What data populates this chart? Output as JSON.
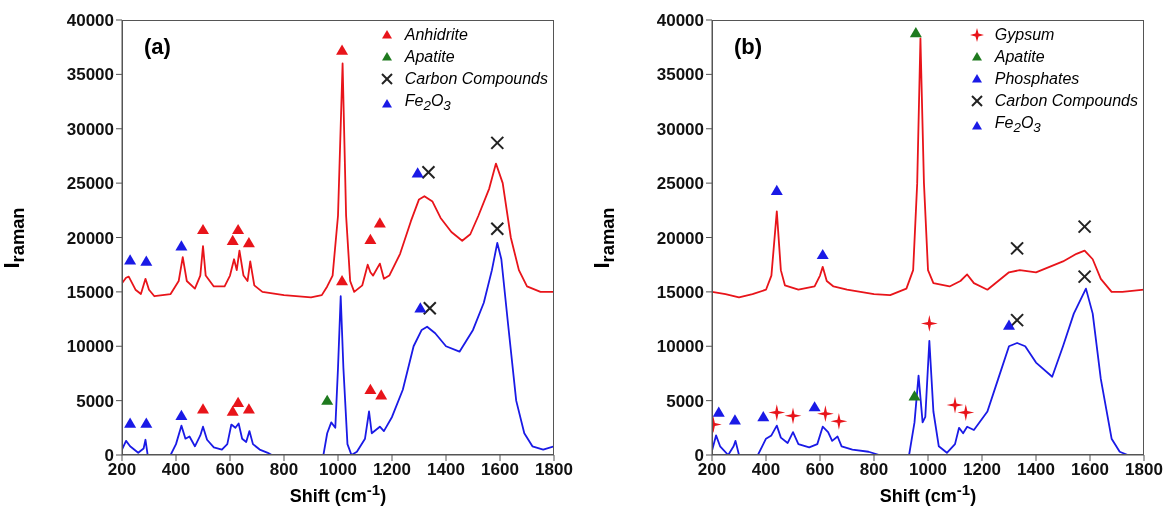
{
  "chart_data": [
    {
      "type": "line",
      "xlabel": "Shift (cm$^{-1}$)",
      "ylabel": "I$_{raman}$",
      "annotations": [
        "(a)"
      ],
      "xlim": [
        200,
        1800
      ],
      "xticks": [
        200,
        400,
        600,
        800,
        1000,
        1200,
        1400,
        1600,
        1800
      ],
      "ylim": [
        0,
        40000
      ],
      "yticks": [
        0,
        5000,
        10000,
        15000,
        20000,
        25000,
        30000,
        35000,
        40000
      ],
      "legend": "top right",
      "series": [
        {
          "color": "#e8141a",
          "x": [
            200,
            215,
            225,
            250,
            270,
            287,
            300,
            320,
            380,
            410,
            425,
            440,
            470,
            490,
            500,
            510,
            540,
            580,
            600,
            615,
            625,
            635,
            650,
            665,
            675,
            690,
            720,
            800,
            900,
            940,
            960,
            980,
            1000,
            1017,
            1030,
            1045,
            1060,
            1090,
            1110,
            1120,
            1130,
            1155,
            1170,
            1190,
            1230,
            1270,
            1300,
            1320,
            1350,
            1380,
            1420,
            1460,
            1490,
            1520,
            1560,
            1585,
            1610,
            1640,
            1670,
            1700,
            1750,
            1800
          ],
          "values": [
            15800,
            16300,
            16400,
            15200,
            14800,
            16200,
            15200,
            14600,
            14800,
            16000,
            18200,
            16000,
            15300,
            16500,
            19200,
            16500,
            15500,
            15500,
            16500,
            18000,
            17000,
            18800,
            16500,
            16000,
            17800,
            15600,
            15000,
            14700,
            14500,
            14700,
            15500,
            16500,
            22000,
            36000,
            22000,
            16000,
            15000,
            15600,
            17500,
            16800,
            16500,
            17600,
            16200,
            16500,
            18500,
            21500,
            23500,
            23800,
            23300,
            21800,
            20500,
            19700,
            20300,
            22000,
            24500,
            26800,
            25000,
            20000,
            17000,
            15500,
            15000,
            15000
          ]
        },
        {
          "color": "#1a1ae6",
          "x": [
            200,
            215,
            230,
            260,
            280,
            287,
            295,
            330,
            380,
            400,
            420,
            435,
            450,
            470,
            490,
            500,
            515,
            540,
            570,
            590,
            605,
            620,
            632,
            645,
            660,
            672,
            685,
            710,
            740,
            755,
            800,
            946,
            960,
            975,
            990,
            1000,
            1010,
            1020,
            1035,
            1050,
            1070,
            1100,
            1115,
            1125,
            1140,
            1155,
            1170,
            1200,
            1240,
            1280,
            1310,
            1330,
            1360,
            1400,
            1450,
            1500,
            1540,
            1570,
            1590,
            1605,
            1630,
            1660,
            1690,
            1720,
            1760,
            1800
          ],
          "values": [
            500,
            1300,
            800,
            200,
            600,
            1400,
            0,
            null,
            0,
            1000,
            2700,
            1500,
            1700,
            800,
            1800,
            2600,
            1400,
            700,
            500,
            1000,
            2800,
            2500,
            2900,
            1500,
            1200,
            2200,
            1000,
            500,
            200,
            0,
            null,
            0,
            2000,
            3000,
            2500,
            8000,
            14600,
            8000,
            1000,
            0,
            300,
            1500,
            4000,
            2000,
            2300,
            2600,
            2200,
            3500,
            6000,
            10000,
            11500,
            11800,
            11200,
            10000,
            9500,
            11500,
            14000,
            17000,
            19500,
            18000,
            12000,
            5000,
            2000,
            800,
            500,
            800
          ]
        },
        {
          "type": "scatter",
          "name": "Anhidrite",
          "color": "#e8141a",
          "marker": "triangle",
          "x": [
            500,
            610,
            630,
            670,
            1015,
            1120,
            1155,
            500,
            610,
            630,
            670,
            1015,
            1120,
            1160
          ],
          "values": [
            20700,
            19700,
            20700,
            19500,
            37200,
            19800,
            21300,
            4200,
            4000,
            4800,
            4200,
            16000,
            6000,
            5500
          ]
        },
        {
          "type": "scatter",
          "name": "Apatite",
          "color": "#1e7a1e",
          "marker": "triangle",
          "x": [
            960
          ],
          "values": [
            5000
          ]
        },
        {
          "type": "scatter",
          "name": "Carbon Compounds",
          "color": "#222222",
          "marker": "cross",
          "x": [
            1335,
            1590,
            1340,
            1590
          ],
          "values": [
            26000,
            28700,
            13500,
            20800
          ]
        },
        {
          "type": "scatter",
          "name": "Fe$_{2}$O$_{3}$",
          "color": "#1a1ae6",
          "marker": "triangle",
          "x": [
            230,
            290,
            420,
            1295,
            230,
            290,
            420,
            1305
          ],
          "values": [
            17900,
            17800,
            19200,
            25900,
            2900,
            2900,
            3600,
            13500
          ]
        }
      ]
    },
    {
      "type": "line",
      "xlabel": "Shift (cm$^{-1}$)",
      "ylabel": "I$_{raman}$",
      "annotations": [
        "(b)"
      ],
      "xlim": [
        200,
        1800
      ],
      "xticks": [
        200,
        400,
        600,
        800,
        1000,
        1200,
        1400,
        1600,
        1800
      ],
      "ylim": [
        0,
        40000
      ],
      "yticks": [
        0,
        5000,
        10000,
        15000,
        20000,
        25000,
        30000,
        35000,
        40000
      ],
      "legend": "top right",
      "series": [
        {
          "color": "#e8141a",
          "x": [
            200,
            250,
            300,
            350,
            400,
            420,
            440,
            455,
            470,
            520,
            580,
            600,
            610,
            625,
            650,
            700,
            800,
            860,
            920,
            945,
            960,
            972,
            985,
            1000,
            1020,
            1080,
            1120,
            1145,
            1170,
            1220,
            1260,
            1300,
            1340,
            1400,
            1450,
            1500,
            1550,
            1580,
            1610,
            1640,
            1680,
            1720,
            1800
          ],
          "values": [
            15000,
            14800,
            14500,
            14800,
            15200,
            16500,
            22400,
            17000,
            15600,
            15200,
            15500,
            16500,
            17300,
            16000,
            15500,
            15200,
            14800,
            14700,
            15300,
            17000,
            25000,
            38300,
            25000,
            17000,
            15800,
            15500,
            16000,
            16600,
            15800,
            15200,
            16000,
            16800,
            17000,
            16800,
            17300,
            17800,
            18500,
            18800,
            18000,
            16200,
            15000,
            15000,
            15200
          ]
        },
        {
          "color": "#1a1ae6",
          "x": [
            200,
            215,
            230,
            260,
            280,
            287,
            300,
            330,
            370,
            400,
            420,
            440,
            455,
            480,
            500,
            520,
            560,
            590,
            610,
            630,
            645,
            665,
            680,
            720,
            780,
            820,
            880,
            930,
            950,
            965,
            980,
            990,
            1005,
            1020,
            1040,
            1070,
            1100,
            1115,
            1130,
            1145,
            1170,
            1220,
            1260,
            1300,
            1330,
            1360,
            1400,
            1460,
            1500,
            1540,
            1585,
            1610,
            1640,
            1680,
            1710,
            1740,
            1800
          ],
          "values": [
            400,
            1800,
            800,
            0,
            800,
            1300,
            0,
            null,
            0,
            1500,
            1800,
            2700,
            1600,
            1100,
            2100,
            1000,
            700,
            1000,
            2600,
            2100,
            1300,
            1700,
            800,
            500,
            300,
            0,
            null,
            0,
            3000,
            7300,
            3000,
            3500,
            10500,
            4000,
            800,
            200,
            1000,
            2500,
            2000,
            2600,
            2300,
            4000,
            7000,
            10000,
            10300,
            10000,
            8500,
            7200,
            10000,
            13000,
            15300,
            13000,
            7000,
            1500,
            300,
            0,
            0
          ]
        },
        {
          "type": "scatter",
          "name": "Gypsum",
          "color": "#e8141a",
          "marker": "star",
          "x": [
            205,
            440,
            500,
            620,
            670,
            1005,
            1100,
            1140
          ],
          "values": [
            2800,
            3900,
            3600,
            3800,
            3100,
            12100,
            4600,
            3900
          ]
        },
        {
          "type": "scatter",
          "name": "Apatite",
          "color": "#1e7a1e",
          "marker": "triangle",
          "x": [
            955,
            950
          ],
          "values": [
            38800,
            5400
          ]
        },
        {
          "type": "scatter",
          "name": "Phosphates",
          "color": "#1a1ae6",
          "marker": "triangle",
          "x": [
            440,
            610
          ],
          "values": [
            24300,
            18400
          ]
        },
        {
          "type": "scatter",
          "name": "Carbon Compounds",
          "color": "#222222",
          "marker": "cross",
          "x": [
            1330,
            1580,
            1330,
            1580
          ],
          "values": [
            19000,
            21000,
            12400,
            16400
          ]
        },
        {
          "type": "scatter",
          "name": "Fe$_{2}$O$_{3}$",
          "color": "#1a1ae6",
          "marker": "triangle",
          "x": [
            225,
            285,
            390,
            580,
            1300
          ],
          "values": [
            3900,
            3200,
            3500,
            4400,
            11900
          ]
        }
      ]
    }
  ]
}
